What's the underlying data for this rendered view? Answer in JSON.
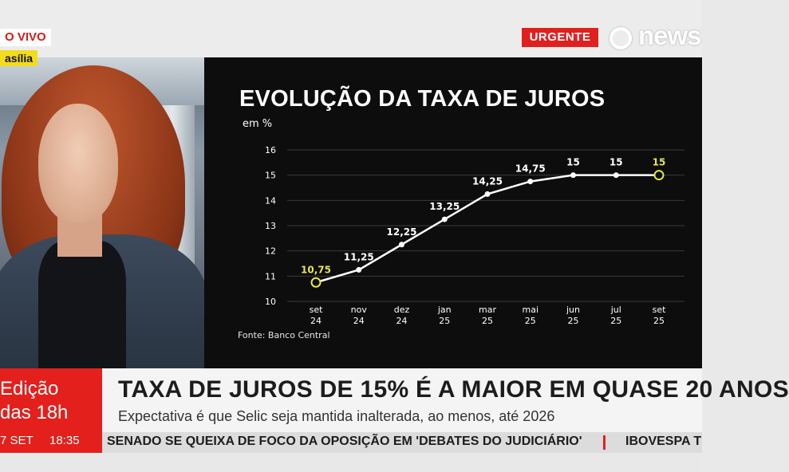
{
  "header": {
    "live_label": "O VIVO",
    "city_label": "asília",
    "urgent_label": "URGENTE",
    "logo_text": "news"
  },
  "chart": {
    "title": "EVOLUÇÃO DA TAXA DE JUROS",
    "unit": "em %",
    "source": "Fonte: Banco Central"
  },
  "chart_data": {
    "type": "line",
    "title": "EVOLUÇÃO DA TAXA DE JUROS",
    "ylabel": "em %",
    "ylim": [
      10,
      16
    ],
    "yticks": [
      "10",
      "11",
      "12",
      "13",
      "14",
      "15",
      "16"
    ],
    "grid": true,
    "categories": [
      [
        "set",
        "24"
      ],
      [
        "nov",
        "24"
      ],
      [
        "dez",
        "24"
      ],
      [
        "jan",
        "25"
      ],
      [
        "mar",
        "25"
      ],
      [
        "mai",
        "25"
      ],
      [
        "jun",
        "25"
      ],
      [
        "jul",
        "25"
      ],
      [
        "set",
        "25"
      ]
    ],
    "values": [
      10.75,
      11.25,
      12.25,
      13.25,
      14.25,
      14.75,
      15,
      15,
      15
    ],
    "data_labels": [
      "10,75",
      "11,25",
      "12,25",
      "13,25",
      "14,25",
      "14,75",
      "15",
      "15",
      "15"
    ],
    "highlighted_points": [
      0,
      8
    ],
    "colors": {
      "line": "#ffffff",
      "highlight": "#e6e64a",
      "label": "#ffffff",
      "grid": "#3a3a3a"
    }
  },
  "lower_third": {
    "edition_line1": "Edição",
    "edition_line2": "das 18h",
    "date": "7 SET",
    "time": "18:35",
    "headline": "TAXA DE JUROS DE 15% É A MAIOR EM QUASE 20 ANOS",
    "subline": "Expectativa é que Selic seja mantida inalterada, ao menos, até 2026",
    "ticker_main": "SENADO SE QUEIXA DE FOCO DA OPOSIÇÃO EM 'DEBATES DO JUDICIÁRIO'",
    "ticker_next": "IBOVESPA T"
  },
  "colors": {
    "brand_red": "#e3201c",
    "live_yellow": "#f2dc1e"
  }
}
